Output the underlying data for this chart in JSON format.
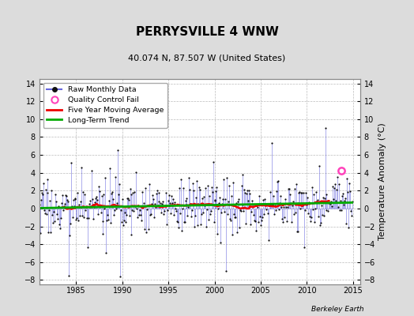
{
  "title": "PERRYSVILLE 4 WNW",
  "subtitle": "40.074 N, 87.507 W (United States)",
  "ylabel": "Temperature Anomaly (°C)",
  "credit": "Berkeley Earth",
  "ylim": [
    -8.5,
    14.5
  ],
  "yticks": [
    -8,
    -6,
    -4,
    -2,
    0,
    2,
    4,
    6,
    8,
    10,
    12,
    14
  ],
  "xlim": [
    1981.0,
    2015.8
  ],
  "xticks": [
    1985,
    1990,
    1995,
    2000,
    2005,
    2010,
    2015
  ],
  "start_year": 1981,
  "end_year": 2014,
  "bg_color": "#dcdcdc",
  "plot_bg_color": "#ffffff",
  "grid_color": "#bbbbbb",
  "raw_line_color": "#6666dd",
  "raw_dot_color": "#111111",
  "moving_avg_color": "#ee0000",
  "trend_color": "#00aa00",
  "qc_fail_color": "#ff44bb",
  "seed": 17,
  "n_months": 408,
  "qc_fail_x": 2013.75,
  "qc_fail_y": 4.2,
  "title_fontsize": 11,
  "subtitle_fontsize": 8,
  "tick_fontsize": 7,
  "ylabel_fontsize": 8
}
